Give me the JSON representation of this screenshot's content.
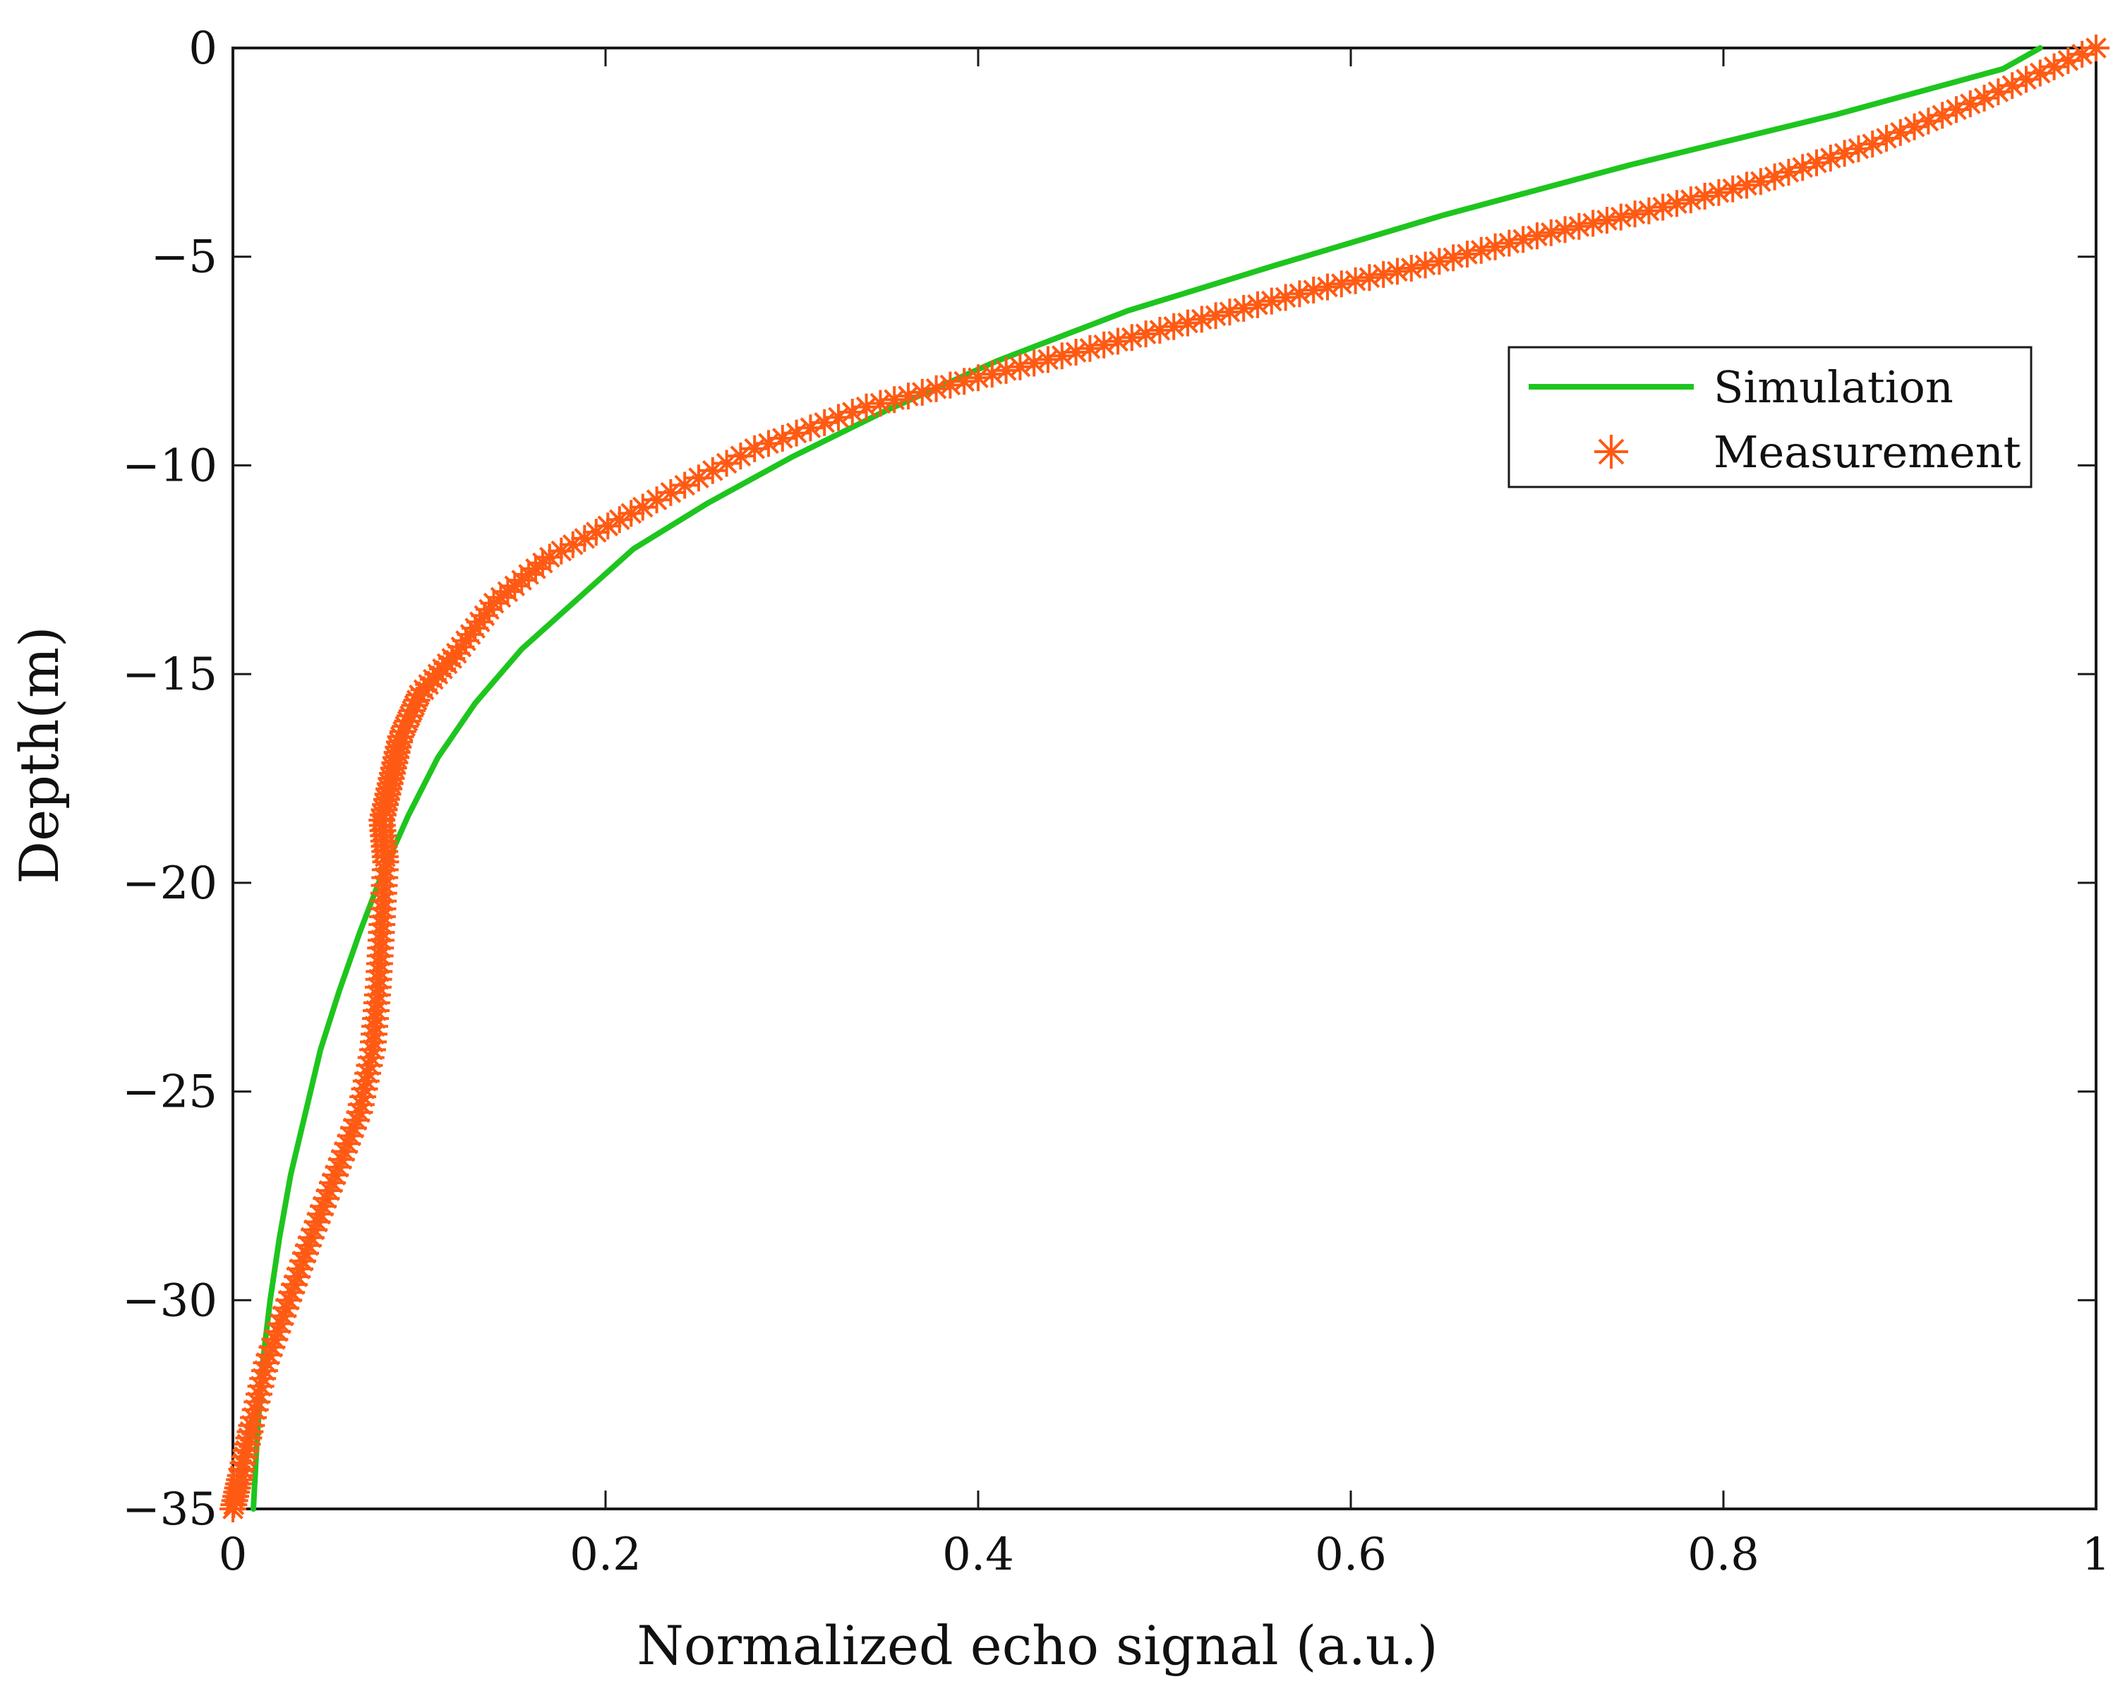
{
  "chart_data": {
    "type": "line",
    "title": "",
    "xlabel": "Normalized echo signal (a.u.)",
    "ylabel": "Depth(m)",
    "xlim": [
      0,
      1
    ],
    "ylim": [
      -35,
      0
    ],
    "xticks": [
      0,
      0.2,
      0.4,
      0.6,
      0.8,
      1
    ],
    "xtick_labels": [
      "0",
      "0.2",
      "0.4",
      "0.6",
      "0.8",
      "1"
    ],
    "yticks": [
      0,
      -5,
      -10,
      -15,
      -20,
      -25,
      -30,
      -35
    ],
    "ytick_labels": [
      "0",
      "−5",
      "−10",
      "−15",
      "−20",
      "−25",
      "−30",
      "−35"
    ],
    "grid": false,
    "legend_position": "upper-right",
    "series": [
      {
        "name": "Simulation",
        "style": "solid-line",
        "color": "#1ec51e",
        "x": [
          0.97,
          0.95,
          0.86,
          0.75,
          0.65,
          0.56,
          0.48,
          0.41,
          0.35,
          0.3,
          0.255,
          0.215,
          0.185,
          0.155,
          0.13,
          0.11,
          0.094,
          0.08,
          0.068,
          0.057,
          0.047,
          0.039,
          0.031,
          0.025,
          0.02,
          0.016,
          0.013,
          0.011
        ],
        "y": [
          0,
          -0.5,
          -1.6,
          -2.8,
          -4.0,
          -5.2,
          -6.3,
          -7.5,
          -8.7,
          -9.8,
          -10.9,
          -12.0,
          -13.2,
          -14.4,
          -15.7,
          -17.0,
          -18.4,
          -19.8,
          -21.2,
          -22.6,
          -24.0,
          -25.5,
          -27.0,
          -28.5,
          -30.0,
          -31.5,
          -33.3,
          -35.0
        ]
      },
      {
        "name": "Measurement",
        "style": "asterisk-markers",
        "color": "#ff5a14",
        "x": [
          1.0,
          0.94,
          0.88,
          0.82,
          0.76,
          0.7,
          0.64,
          0.58,
          0.52,
          0.46,
          0.4,
          0.34,
          0.28,
          0.22,
          0.17,
          0.14,
          0.12,
          0.1,
          0.09,
          0.085,
          0.08,
          0.082,
          0.08,
          0.078,
          0.075,
          0.068,
          0.055,
          0.042,
          0.03,
          0.018,
          0.01,
          0.004,
          0.0
        ],
        "y": [
          0,
          -1.2,
          -2.3,
          -3.2,
          -3.9,
          -4.5,
          -5.2,
          -5.8,
          -6.5,
          -7.2,
          -7.9,
          -8.6,
          -9.6,
          -11.0,
          -12.2,
          -13.3,
          -14.5,
          -15.5,
          -16.5,
          -17.5,
          -18.5,
          -19.5,
          -21.0,
          -22.5,
          -24.0,
          -25.5,
          -27.0,
          -28.5,
          -30.0,
          -31.5,
          -33.0,
          -34.2,
          -35.0
        ]
      }
    ]
  }
}
